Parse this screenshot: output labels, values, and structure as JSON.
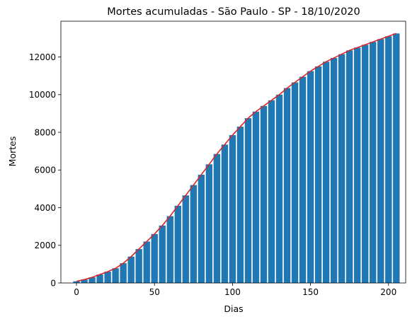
{
  "chart_data": {
    "type": "bar",
    "title": "Mortes acumuladas - São Paulo - SP - 18/10/2020",
    "xlabel": "Dias",
    "ylabel": "Mortes",
    "xlim": [
      -10,
      211
    ],
    "ylim": [
      0,
      13900
    ],
    "xticks": [
      0,
      50,
      100,
      150,
      200
    ],
    "yticks": [
      0,
      2000,
      4000,
      6000,
      8000,
      10000,
      12000
    ],
    "grid": false,
    "legend": "none",
    "colors": {
      "bars": "#1f77b4",
      "curve": "#d62728"
    },
    "series": [
      {
        "type": "bar"
      },
      {
        "type": "line"
      }
    ],
    "x": [
      0,
      5,
      10,
      15,
      20,
      25,
      30,
      35,
      40,
      45,
      50,
      55,
      60,
      65,
      70,
      75,
      80,
      85,
      90,
      95,
      100,
      105,
      110,
      115,
      120,
      125,
      130,
      135,
      140,
      145,
      150,
      155,
      160,
      165,
      170,
      175,
      180,
      185,
      190,
      195,
      200,
      205
    ],
    "values": [
      90,
      180,
      300,
      450,
      600,
      780,
      1050,
      1400,
      1800,
      2200,
      2600,
      3050,
      3550,
      4100,
      4650,
      5200,
      5750,
      6300,
      6850,
      7350,
      7850,
      8300,
      8750,
      9100,
      9400,
      9700,
      10000,
      10350,
      10650,
      10950,
      11250,
      11500,
      11750,
      11950,
      12150,
      12350,
      12500,
      12650,
      12800,
      12950,
      13100,
      13250
    ]
  }
}
